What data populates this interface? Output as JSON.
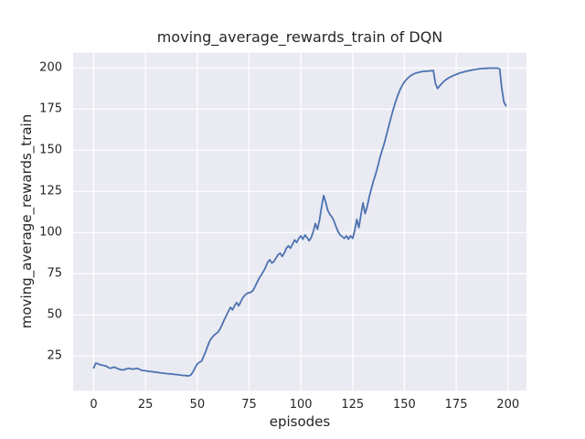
{
  "chart_data": {
    "type": "line",
    "title": "moving_average_rewards_train of DQN",
    "xlabel": "episodes",
    "ylabel": "moving_average_rewards_train",
    "xticks": [
      0,
      25,
      50,
      75,
      100,
      125,
      150,
      175,
      200
    ],
    "yticks": [
      25,
      50,
      75,
      100,
      125,
      150,
      175,
      200
    ],
    "xlim": [
      -9.95,
      208.95
    ],
    "ylim": [
      3.9,
      209.3
    ],
    "grid": true,
    "legend": "none",
    "plot_bg": "#eaeaf2",
    "grid_color": "#ffffff",
    "series": [
      {
        "name": "moving_average_rewards_train",
        "color": "#4c72b0",
        "points": [
          [
            0,
            17.8
          ],
          [
            1,
            20.7
          ],
          [
            2,
            20.3
          ],
          [
            3,
            19.7
          ],
          [
            4,
            19.4
          ],
          [
            5,
            19.1
          ],
          [
            6,
            18.9
          ],
          [
            7,
            18.0
          ],
          [
            8,
            17.5
          ],
          [
            9,
            17.9
          ],
          [
            10,
            18.3
          ],
          [
            11,
            17.6
          ],
          [
            12,
            17.1
          ],
          [
            13,
            16.7
          ],
          [
            14,
            16.5
          ],
          [
            15,
            16.8
          ],
          [
            16,
            17.3
          ],
          [
            17,
            17.5
          ],
          [
            18,
            17.2
          ],
          [
            19,
            17.0
          ],
          [
            20,
            17.3
          ],
          [
            21,
            17.5
          ],
          [
            22,
            16.9
          ],
          [
            23,
            16.4
          ],
          [
            24,
            16.2
          ],
          [
            25,
            16.0
          ],
          [
            26,
            15.8
          ],
          [
            27,
            15.6
          ],
          [
            28,
            15.5
          ],
          [
            29,
            15.3
          ],
          [
            30,
            15.2
          ],
          [
            31,
            15.0
          ],
          [
            32,
            14.8
          ],
          [
            33,
            14.6
          ],
          [
            34,
            14.5
          ],
          [
            35,
            14.3
          ],
          [
            36,
            14.2
          ],
          [
            37,
            14.1
          ],
          [
            38,
            14.0
          ],
          [
            39,
            13.8
          ],
          [
            40,
            13.7
          ],
          [
            41,
            13.6
          ],
          [
            42,
            13.4
          ],
          [
            43,
            13.2
          ],
          [
            44,
            13.1
          ],
          [
            45,
            13.0
          ],
          [
            46,
            12.9
          ],
          [
            47,
            13.6
          ],
          [
            48,
            15.5
          ],
          [
            49,
            18.0
          ],
          [
            50,
            20.2
          ],
          [
            51,
            21.2
          ],
          [
            52,
            21.8
          ],
          [
            53,
            24.5
          ],
          [
            54,
            27.5
          ],
          [
            55,
            31.0
          ],
          [
            56,
            34.0
          ],
          [
            57,
            36.0
          ],
          [
            58,
            37.5
          ],
          [
            59,
            38.5
          ],
          [
            60,
            39.5
          ],
          [
            61,
            41.5
          ],
          [
            62,
            44.0
          ],
          [
            63,
            47.0
          ],
          [
            64,
            49.5
          ],
          [
            65,
            52.0
          ],
          [
            66,
            54.5
          ],
          [
            67,
            53.0
          ],
          [
            68,
            55.5
          ],
          [
            69,
            57.5
          ],
          [
            70,
            55.5
          ],
          [
            71,
            58.0
          ],
          [
            72,
            60.5
          ],
          [
            73,
            62.0
          ],
          [
            74,
            63.0
          ],
          [
            75,
            63.5
          ],
          [
            76,
            63.8
          ],
          [
            77,
            65.0
          ],
          [
            78,
            67.5
          ],
          [
            79,
            70.0
          ],
          [
            80,
            72.5
          ],
          [
            81,
            74.5
          ],
          [
            82,
            76.5
          ],
          [
            83,
            79.0
          ],
          [
            84,
            82.0
          ],
          [
            85,
            83.5
          ],
          [
            86,
            81.5
          ],
          [
            87,
            82.5
          ],
          [
            88,
            84.5
          ],
          [
            89,
            86.5
          ],
          [
            90,
            87.5
          ],
          [
            91,
            85.5
          ],
          [
            92,
            87.5
          ],
          [
            93,
            90.5
          ],
          [
            94,
            92.0
          ],
          [
            95,
            90.5
          ],
          [
            96,
            93.0
          ],
          [
            97,
            95.5
          ],
          [
            98,
            94.0
          ],
          [
            99,
            96.5
          ],
          [
            100,
            98.0
          ],
          [
            101,
            96.0
          ],
          [
            102,
            98.5
          ],
          [
            103,
            97.0
          ],
          [
            104,
            95.0
          ],
          [
            105,
            97.0
          ],
          [
            106,
            100.5
          ],
          [
            107,
            105.5
          ],
          [
            108,
            102.0
          ],
          [
            109,
            107.5
          ],
          [
            110,
            115.5
          ],
          [
            111,
            122.5
          ],
          [
            112,
            118.5
          ],
          [
            113,
            113.5
          ],
          [
            114,
            111.0
          ],
          [
            115,
            109.5
          ],
          [
            116,
            107.0
          ],
          [
            117,
            103.5
          ],
          [
            118,
            100.5
          ],
          [
            119,
            98.5
          ],
          [
            120,
            97.5
          ],
          [
            121,
            96.5
          ],
          [
            122,
            98.0
          ],
          [
            123,
            96.0
          ],
          [
            124,
            98.0
          ],
          [
            125,
            96.5
          ],
          [
            126,
            101.0
          ],
          [
            127,
            108.0
          ],
          [
            128,
            103.0
          ],
          [
            129,
            110.5
          ],
          [
            130,
            118.0
          ],
          [
            131,
            111.5
          ],
          [
            132,
            115.5
          ],
          [
            133,
            121.5
          ],
          [
            134,
            126.5
          ],
          [
            135,
            131.0
          ],
          [
            136,
            135.0
          ],
          [
            137,
            139.5
          ],
          [
            138,
            144.5
          ],
          [
            139,
            149.0
          ],
          [
            140,
            153.0
          ],
          [
            141,
            157.5
          ],
          [
            142,
            162.5
          ],
          [
            143,
            167.5
          ],
          [
            144,
            172.0
          ],
          [
            145,
            176.5
          ],
          [
            146,
            180.5
          ],
          [
            147,
            184.0
          ],
          [
            148,
            187.0
          ],
          [
            149,
            189.5
          ],
          [
            150,
            191.5
          ],
          [
            151,
            193.0
          ],
          [
            152,
            194.3
          ],
          [
            153,
            195.3
          ],
          [
            154,
            196.1
          ],
          [
            155,
            196.7
          ],
          [
            156,
            197.1
          ],
          [
            157,
            197.4
          ],
          [
            158,
            197.7
          ],
          [
            159,
            197.9
          ],
          [
            160,
            198.0
          ],
          [
            161,
            198.1
          ],
          [
            162,
            198.2
          ],
          [
            163,
            198.3
          ],
          [
            164,
            198.4
          ],
          [
            165,
            190.5
          ],
          [
            166,
            187.5
          ],
          [
            167,
            189.0
          ],
          [
            168,
            190.5
          ],
          [
            169,
            191.8
          ],
          [
            170,
            192.8
          ],
          [
            171,
            193.7
          ],
          [
            172,
            194.4
          ],
          [
            173,
            195.0
          ],
          [
            174,
            195.6
          ],
          [
            175,
            196.1
          ],
          [
            176,
            196.6
          ],
          [
            177,
            197.0
          ],
          [
            178,
            197.4
          ],
          [
            179,
            197.7
          ],
          [
            180,
            198.0
          ],
          [
            181,
            198.3
          ],
          [
            182,
            198.6
          ],
          [
            183,
            198.9
          ],
          [
            184,
            199.1
          ],
          [
            185,
            199.3
          ],
          [
            186,
            199.5
          ],
          [
            187,
            199.6
          ],
          [
            188,
            199.7
          ],
          [
            189,
            199.8
          ],
          [
            190,
            199.8
          ],
          [
            191,
            199.9
          ],
          [
            192,
            199.9
          ],
          [
            193,
            199.9
          ],
          [
            194,
            199.9
          ],
          [
            195,
            199.9
          ],
          [
            196,
            199.3
          ],
          [
            197,
            188.0
          ],
          [
            198,
            179.5
          ],
          [
            199,
            177.0
          ]
        ]
      }
    ]
  }
}
